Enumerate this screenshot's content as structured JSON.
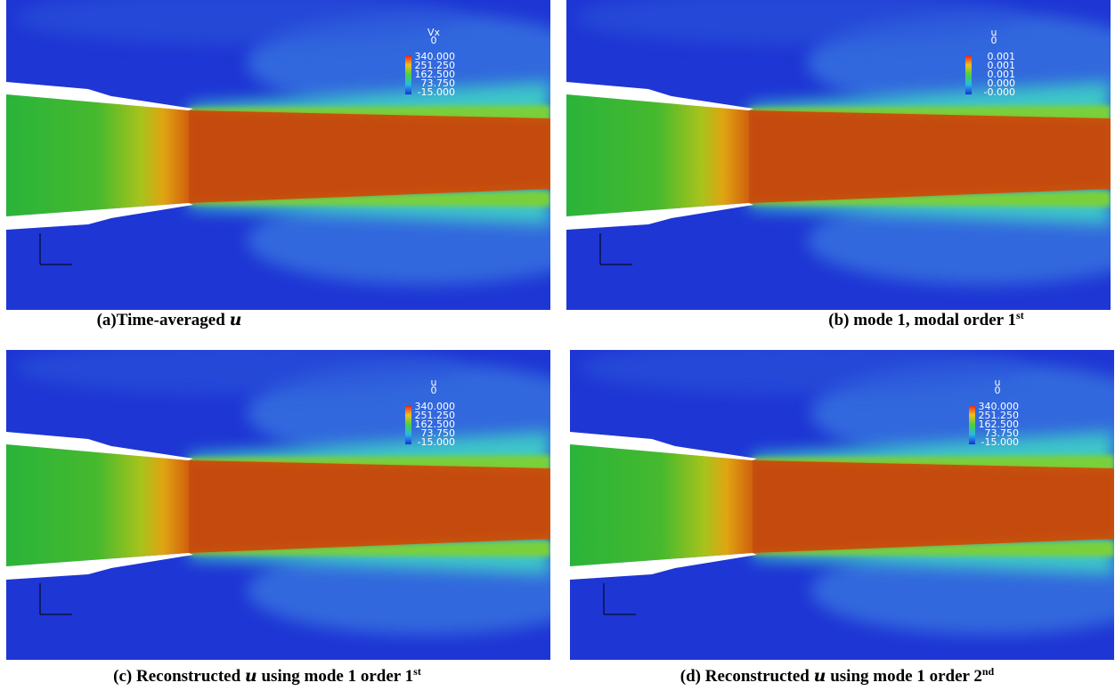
{
  "panels": [
    {
      "legend": {
        "title": "Vx",
        "subtitle": "0",
        "labels": [
          "340.000",
          "251.250",
          "162.500",
          "73.750",
          "-15.000"
        ]
      },
      "caption": [
        {
          "text": "(a)Time-averaged ",
          "style": "normal"
        },
        {
          "text": "u",
          "style": "italic"
        }
      ]
    },
    {
      "legend": {
        "title": "u",
        "subtitle": "0",
        "labels": [
          "0.001",
          "0.001",
          "0.001",
          "0.000",
          "-0.000"
        ]
      },
      "caption": [
        {
          "text": "(b) mode 1, modal order 1",
          "style": "normal"
        },
        {
          "text": "st",
          "style": "sup"
        }
      ]
    },
    {
      "legend": {
        "title": "u",
        "subtitle": "0",
        "labels": [
          "340.000",
          "251.250",
          "162.500",
          "73.750",
          "-15.000"
        ]
      },
      "caption": [
        {
          "text": "(c) Reconstructed ",
          "style": "normal"
        },
        {
          "text": "u",
          "style": "italic"
        },
        {
          "text": " using mode 1 order 1",
          "style": "normal"
        },
        {
          "text": "st",
          "style": "sup"
        }
      ]
    },
    {
      "legend": {
        "title": "u",
        "subtitle": "0",
        "labels": [
          "340.000",
          "251.250",
          "162.500",
          "73.750",
          "-15.000"
        ]
      },
      "caption": [
        {
          "text": "(d) Reconstructed ",
          "style": "normal"
        },
        {
          "text": "u",
          "style": "italic"
        },
        {
          "text": " using mode 1 order 2",
          "style": "normal"
        },
        {
          "text": "nd",
          "style": "sup"
        }
      ]
    }
  ]
}
